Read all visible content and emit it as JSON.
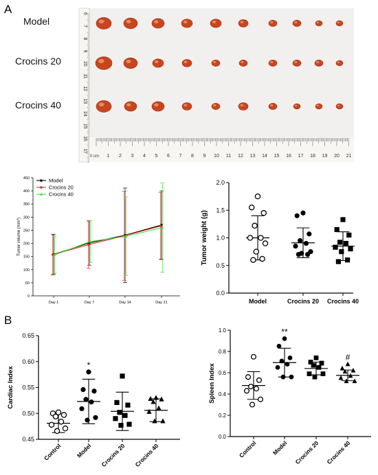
{
  "panels": {
    "a": "A",
    "b": "B"
  },
  "photo": {
    "row_labels": [
      "Model",
      "Crocins 20",
      "Crocins 40"
    ],
    "ruler_unit": "0 cm",
    "ruler_numbers": [
      "1",
      "2",
      "3",
      "4",
      "5",
      "6",
      "7",
      "8",
      "9",
      "10",
      "11",
      "12",
      "13",
      "14",
      "15",
      "16",
      "17",
      "18",
      "19",
      "20",
      "21"
    ],
    "side_ruler_numbers": [
      "6",
      "7",
      "8",
      "9",
      "10",
      "11",
      "12",
      "13",
      "14",
      "15",
      "16",
      "17"
    ],
    "tumor_color": "#c8461f",
    "background_color": "#f1f0ee"
  },
  "chart_data": [
    {
      "type": "line",
      "id": "tumor_volume",
      "xlabel": "",
      "ylabel": "Tumor volume (mm",
      "ylabel_sup": "3",
      "ylabel_end": ")",
      "categories": [
        "Day 1",
        "Day 7",
        "Day 14",
        "Day 21"
      ],
      "ylim": [
        0,
        450
      ],
      "yticks": [
        0,
        50,
        100,
        150,
        200,
        250,
        300,
        350,
        400,
        450
      ],
      "legend_position": "top-left",
      "series": [
        {
          "name": "Model",
          "color": "#000000",
          "values": [
            158,
            202,
            231,
            270
          ],
          "err": [
            75,
            85,
            180,
            130
          ]
        },
        {
          "name": "Crocins 20",
          "color": "#e8262a",
          "values": [
            157,
            195,
            229,
            266
          ],
          "err": [
            78,
            90,
            170,
            128
          ]
        },
        {
          "name": "Crocins 40",
          "color": "#2ee82a",
          "values": [
            156,
            207,
            227,
            260
          ],
          "err": [
            70,
            80,
            150,
            170
          ]
        }
      ]
    },
    {
      "type": "scatter",
      "id": "tumor_weight",
      "ylabel": "Tumor weight (g)",
      "categories": [
        "Model",
        "Crocins 20",
        "Crocins 40"
      ],
      "ylim": [
        0,
        2.0
      ],
      "yticks": [
        "0.0",
        "0.5",
        "1.0",
        "1.5",
        "2.0"
      ],
      "groups": [
        {
          "name": "Model",
          "marker": "open-circle",
          "mean": 1.0,
          "sd": 0.4,
          "values": [
            1.75,
            1.55,
            1.45,
            1.22,
            1.0,
            1.0,
            0.9,
            0.75,
            0.62,
            0.6
          ]
        },
        {
          "name": "Crocins 20",
          "marker": "filled-circle",
          "mean": 0.91,
          "sd": 0.27,
          "values": [
            1.45,
            1.4,
            1.07,
            0.95,
            0.9,
            0.85,
            0.75,
            0.72,
            0.7,
            0.7
          ]
        },
        {
          "name": "Crocins 40",
          "marker": "filled-square",
          "mean": 0.85,
          "sd": 0.26,
          "values": [
            1.33,
            1.15,
            1.05,
            0.92,
            0.9,
            0.83,
            0.8,
            0.75,
            0.6,
            0.57
          ]
        }
      ]
    },
    {
      "type": "scatter",
      "id": "cardiac_index",
      "ylabel": "Cardiac Index",
      "categories": [
        "Control",
        "Model",
        "Crocins 20",
        "Crocins 40"
      ],
      "ylim": [
        0.45,
        0.65
      ],
      "yticks": [
        "0.45",
        "0.50",
        "0.55",
        "0.60",
        "0.65"
      ],
      "groups": [
        {
          "name": "Control",
          "marker": "open-circle",
          "mean": 0.481,
          "sd": 0.018,
          "annotation": "",
          "values": [
            0.502,
            0.5,
            0.497,
            0.494,
            0.484,
            0.478,
            0.471,
            0.466
          ]
        },
        {
          "name": "Model",
          "marker": "filled-circle",
          "mean": 0.523,
          "sd": 0.043,
          "annotation": "*",
          "values": [
            0.58,
            0.546,
            0.543,
            0.527,
            0.522,
            0.509,
            0.492,
            0.487
          ]
        },
        {
          "name": "Crocins 20",
          "marker": "filled-square",
          "mean": 0.504,
          "sd": 0.037,
          "annotation": "",
          "values": [
            0.572,
            0.521,
            0.516,
            0.502,
            0.496,
            0.49,
            0.479,
            0.477
          ]
        },
        {
          "name": "Crocins 40",
          "marker": "filled-triangle",
          "mean": 0.506,
          "sd": 0.022,
          "annotation": "",
          "values": [
            0.53,
            0.528,
            0.527,
            0.522,
            0.51,
            0.503,
            0.485,
            0.485
          ]
        }
      ]
    },
    {
      "type": "scatter",
      "id": "spleen_index",
      "ylabel": "Spleen Index",
      "categories": [
        "Control",
        "Model",
        "Crocins 20",
        "Crocins 40"
      ],
      "ylim": [
        0.0,
        1.0
      ],
      "yticks": [
        "0.0",
        "0.2",
        "0.4",
        "0.6",
        "0.8",
        "1.0"
      ],
      "groups": [
        {
          "name": "Control",
          "marker": "open-circle",
          "mean": 0.48,
          "sd": 0.13,
          "annotation": "",
          "values": [
            0.75,
            0.56,
            0.53,
            0.47,
            0.45,
            0.43,
            0.35,
            0.3
          ]
        },
        {
          "name": "Model",
          "marker": "filled-circle",
          "mean": 0.695,
          "sd": 0.135,
          "annotation": "**",
          "values": [
            0.92,
            0.85,
            0.74,
            0.71,
            0.68,
            0.65,
            0.56,
            0.56
          ]
        },
        {
          "name": "Crocins 20",
          "marker": "filled-square",
          "mean": 0.64,
          "sd": 0.06,
          "annotation": "",
          "values": [
            0.74,
            0.7,
            0.69,
            0.67,
            0.65,
            0.59,
            0.59,
            0.56
          ]
        },
        {
          "name": "Crocins 40",
          "marker": "filled-triangle",
          "mean": 0.575,
          "sd": 0.05,
          "annotation": "#",
          "values": [
            0.68,
            0.64,
            0.62,
            0.61,
            0.57,
            0.55,
            0.52,
            0.52
          ]
        }
      ]
    }
  ]
}
